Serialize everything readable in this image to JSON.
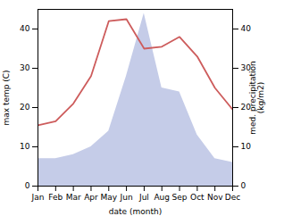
{
  "chart_data": {
    "type": "line",
    "categories": [
      "Jan",
      "Feb",
      "Mar",
      "Apr",
      "May",
      "Jun",
      "Jul",
      "Aug",
      "Sep",
      "Oct",
      "Nov",
      "Dec"
    ],
    "xlabel": "date (month)",
    "ylabel": "max temp (C)",
    "y2label": "med. precipitation\n(kg/m2)",
    "series": [
      {
        "type": "area",
        "axis": "y2",
        "color": "#c5cce8",
        "values": [
          7,
          7,
          8,
          10,
          14,
          28,
          44,
          25,
          24,
          13,
          7,
          6
        ]
      },
      {
        "type": "line",
        "color": "#cd5c5c",
        "values": [
          15.5,
          16.5,
          21.0,
          28.0,
          42.0,
          42.5,
          35.0,
          35.5,
          38.0,
          33.0,
          25.0,
          19.5
        ]
      }
    ],
    "ylim": [
      0,
      45
    ],
    "yticks": [
      0,
      10,
      20,
      30,
      40
    ],
    "y2lim": [
      0,
      45
    ],
    "y2ticks": [
      0,
      10,
      20,
      30,
      40
    ]
  }
}
